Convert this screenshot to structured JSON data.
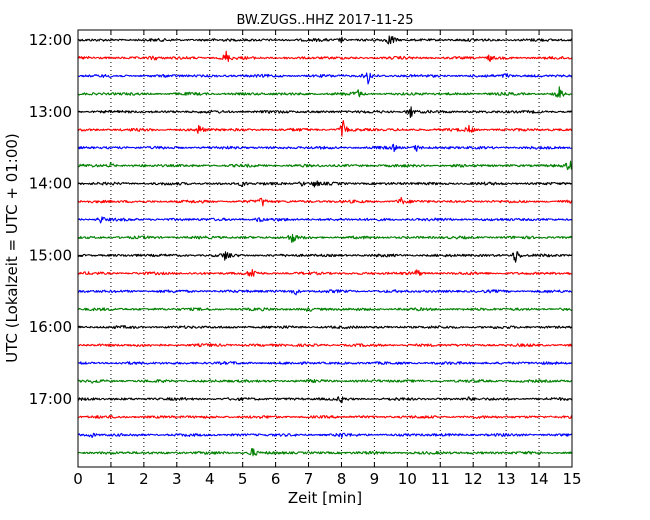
{
  "chart_data": {
    "type": "line",
    "title": "BW.ZUGS..HHZ 2017-11-25",
    "xlabel": "Zeit  [min]",
    "ylabel": "UTC (Lokalzeit = UTC + 01:00)",
    "xlim": [
      0,
      15
    ],
    "x_ticks": [
      "0",
      "1",
      "2",
      "3",
      "4",
      "5",
      "6",
      "7",
      "8",
      "9",
      "10",
      "11",
      "12",
      "13",
      "14",
      "15"
    ],
    "y_ticks": [
      "12:00",
      "13:00",
      "14:00",
      "15:00",
      "16:00",
      "17:00"
    ],
    "grid": "vertical dotted",
    "colors": [
      "#000000",
      "#ff0000",
      "#0000ff",
      "#008000"
    ],
    "traces": [
      {
        "start": "12:00",
        "color": "#000000",
        "events": [
          {
            "t": 9.5,
            "amp": 8
          },
          {
            "t": 8.0,
            "amp": 3
          }
        ]
      },
      {
        "start": "12:15",
        "color": "#ff0000",
        "events": [
          {
            "t": 4.5,
            "amp": 7
          },
          {
            "t": 2.3,
            "amp": 3
          },
          {
            "t": 12.5,
            "amp": 3
          }
        ]
      },
      {
        "start": "12:30",
        "color": "#0000ff",
        "events": [
          {
            "t": 8.8,
            "amp": 9
          },
          {
            "t": 13.0,
            "amp": 3
          }
        ]
      },
      {
        "start": "12:45",
        "color": "#008000",
        "events": [
          {
            "t": 14.6,
            "amp": 8
          },
          {
            "t": 8.5,
            "amp": 4
          }
        ]
      },
      {
        "start": "13:00",
        "color": "#000000",
        "events": [
          {
            "t": 10.1,
            "amp": 7
          }
        ]
      },
      {
        "start": "13:15",
        "color": "#ff0000",
        "events": [
          {
            "t": 8.05,
            "amp": 9
          },
          {
            "t": 3.7,
            "amp": 6
          },
          {
            "t": 11.9,
            "amp": 5
          }
        ]
      },
      {
        "start": "13:30",
        "color": "#0000ff",
        "events": [
          {
            "t": 10.3,
            "amp": 4
          },
          {
            "t": 9.6,
            "amp": 3
          }
        ]
      },
      {
        "start": "13:45",
        "color": "#008000",
        "events": [
          {
            "t": 14.95,
            "amp": 8
          },
          {
            "t": 1.0,
            "amp": 3
          }
        ]
      },
      {
        "start": "14:00",
        "color": "#000000",
        "events": [
          {
            "t": 7.2,
            "amp": 4
          },
          {
            "t": 5.0,
            "amp": 3
          },
          {
            "t": 6.8,
            "amp": 3
          }
        ]
      },
      {
        "start": "14:15",
        "color": "#ff0000",
        "events": [
          {
            "t": 5.6,
            "amp": 5
          },
          {
            "t": 9.8,
            "amp": 4
          }
        ]
      },
      {
        "start": "14:30",
        "color": "#0000ff",
        "events": [
          {
            "t": 0.7,
            "amp": 4
          },
          {
            "t": 5.5,
            "amp": 3
          }
        ]
      },
      {
        "start": "14:45",
        "color": "#008000",
        "events": [
          {
            "t": 6.5,
            "amp": 6
          }
        ]
      },
      {
        "start": "15:00",
        "color": "#000000",
        "events": [
          {
            "t": 13.3,
            "amp": 9
          },
          {
            "t": 4.5,
            "amp": 6
          }
        ]
      },
      {
        "start": "15:15",
        "color": "#ff0000",
        "events": [
          {
            "t": 5.3,
            "amp": 6
          },
          {
            "t": 10.3,
            "amp": 4
          }
        ]
      },
      {
        "start": "15:30",
        "color": "#0000ff",
        "events": [
          {
            "t": 6.6,
            "amp": 4
          }
        ]
      },
      {
        "start": "15:45",
        "color": "#008000",
        "events": [
          {
            "t": 7.0,
            "amp": 2
          }
        ]
      },
      {
        "start": "16:00",
        "color": "#000000",
        "events": []
      },
      {
        "start": "16:15",
        "color": "#ff0000",
        "events": []
      },
      {
        "start": "16:30",
        "color": "#0000ff",
        "events": []
      },
      {
        "start": "16:45",
        "color": "#008000",
        "events": [
          {
            "t": 0.5,
            "amp": 2
          }
        ]
      },
      {
        "start": "17:00",
        "color": "#000000",
        "events": [
          {
            "t": 8.0,
            "amp": 3
          },
          {
            "t": 11.9,
            "amp": 2
          }
        ]
      },
      {
        "start": "17:15",
        "color": "#ff0000",
        "events": []
      },
      {
        "start": "17:30",
        "color": "#0000ff",
        "events": [
          {
            "t": 0.4,
            "amp": 3
          },
          {
            "t": 8.0,
            "amp": 2
          }
        ]
      },
      {
        "start": "17:45",
        "color": "#008000",
        "events": [
          {
            "t": 5.3,
            "amp": 6
          }
        ]
      }
    ]
  }
}
